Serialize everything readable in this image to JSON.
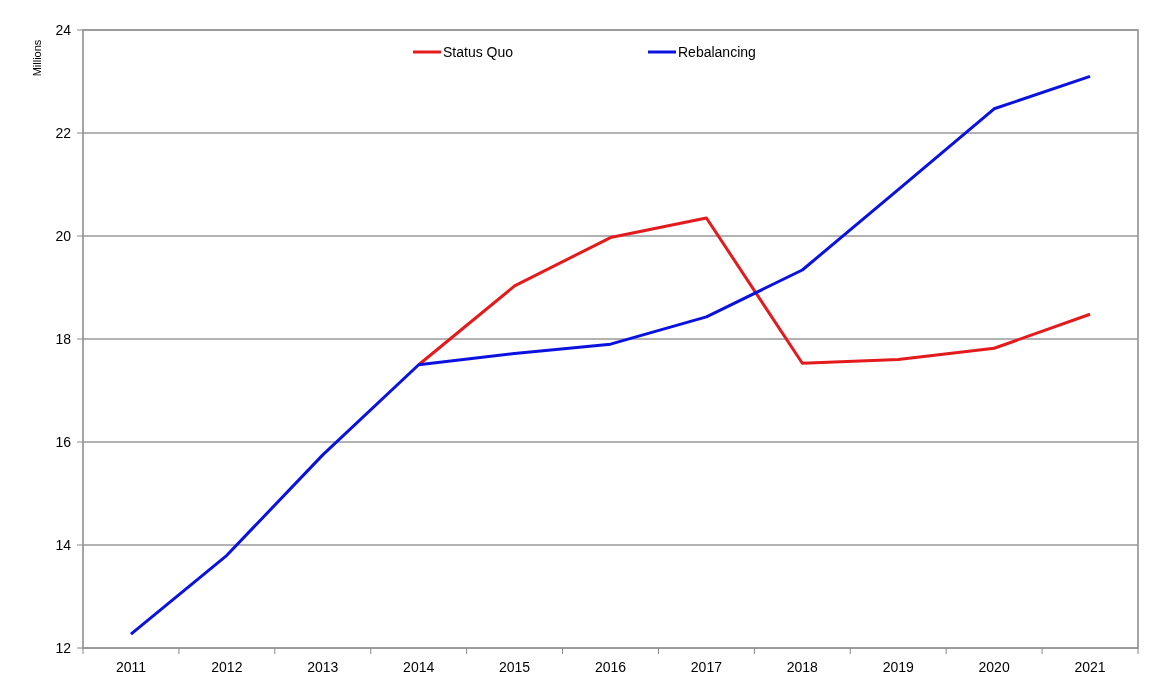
{
  "chart_data": {
    "type": "line",
    "ylabel": "Millions",
    "categories": [
      "2011",
      "2012",
      "2013",
      "2014",
      "2015",
      "2016",
      "2017",
      "2018",
      "2019",
      "2020",
      "2021"
    ],
    "series": [
      {
        "name": "Status Quo",
        "color": "#e41a1c",
        "values": [
          null,
          null,
          null,
          17.5,
          19.03,
          19.97,
          20.35,
          17.53,
          17.6,
          17.82,
          18.48
        ]
      },
      {
        "name": "Rebalancing",
        "color": "#0b12e0",
        "values": [
          12.27,
          13.8,
          15.75,
          17.5,
          17.72,
          17.9,
          18.43,
          19.34,
          20.9,
          22.47,
          23.1
        ]
      }
    ],
    "ylim": [
      12,
      24
    ],
    "yticks": [
      12,
      14,
      16,
      18,
      20,
      22,
      24
    ],
    "grid": "y",
    "legend": "top",
    "marker": "none",
    "line_style": "solid"
  }
}
